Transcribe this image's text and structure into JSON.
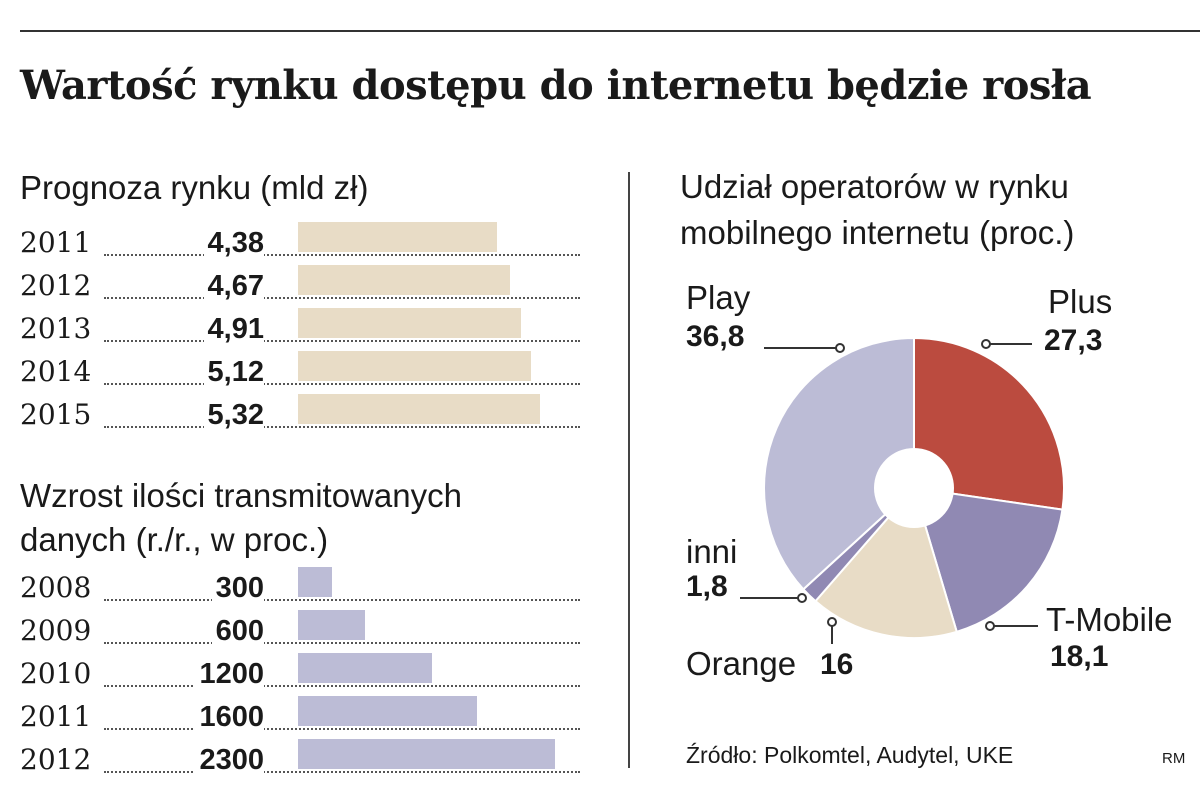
{
  "title": "Wartość rynku dostępu do internetu będzie rosła",
  "forecast_title": "Prognoza rynku (mld zł)",
  "growth_title_line1": "Wzrost ilości transmitowanych",
  "growth_title_line2": "danych (r./r., w proc.)",
  "pie_title_line1": "Udział operatorów w rynku",
  "pie_title_line2": "mobilnego internetu (proc.)",
  "source": "Źródło: Polkomtel, Audytel, UKE",
  "credit": "RM",
  "colors": {
    "beige": "#e8dcc6",
    "lavender": "#bcbcd6",
    "play": "#bcbcd6",
    "plus": "#bb4b3f",
    "tmobile": "#9089b3",
    "orange": "#e8dcc6",
    "inni": "#9089b3"
  },
  "chart_data": [
    {
      "type": "bar",
      "title": "Prognoza rynku (mld zł)",
      "categories": [
        "2011",
        "2012",
        "2013",
        "2014",
        "2015"
      ],
      "values": [
        4.38,
        4.67,
        4.91,
        5.12,
        5.32
      ],
      "labels": [
        "4,38",
        "4,67",
        "4,91",
        "5,12",
        "5,32"
      ],
      "xlim": [
        0,
        6.2
      ]
    },
    {
      "type": "bar",
      "title": "Wzrost ilości transmitowanych danych (r./r., w proc.)",
      "categories": [
        "2008",
        "2009",
        "2010",
        "2011",
        "2012"
      ],
      "values": [
        300,
        600,
        1200,
        1600,
        2300
      ],
      "labels": [
        "300",
        "600",
        "1200",
        "1600",
        "2300"
      ],
      "xlim": [
        0,
        2520
      ]
    },
    {
      "type": "pie",
      "title": "Udział operatorów w rynku mobilnego internetu (proc.)",
      "slices": [
        {
          "name": "Plus",
          "value": 27.3,
          "label": "27,3"
        },
        {
          "name": "T-Mobile",
          "value": 18.1,
          "label": "18,1"
        },
        {
          "name": "Orange",
          "value": 16,
          "label": "16"
        },
        {
          "name": "inni",
          "value": 1.8,
          "label": "1,8"
        },
        {
          "name": "Play",
          "value": 36.8,
          "label": "36,8"
        }
      ]
    }
  ]
}
